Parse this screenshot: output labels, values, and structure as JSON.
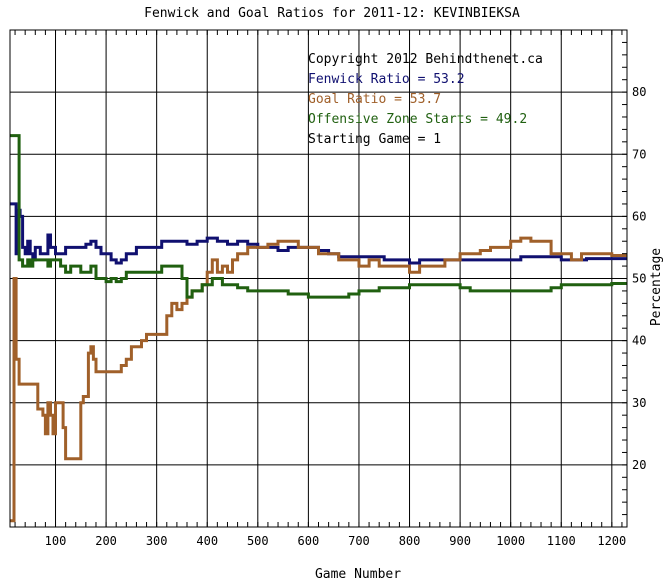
{
  "chart_data": {
    "type": "line",
    "title": "Fenwick and Goal Ratios for 2011-12: KEVINBIEKSA",
    "xlabel": "Game Number",
    "ylabel": "Percentage",
    "xlim": [
      10,
      1230
    ],
    "ylim": [
      10,
      90
    ],
    "x_ticks": [
      100,
      200,
      300,
      400,
      500,
      600,
      700,
      800,
      900,
      1000,
      1100,
      1200
    ],
    "y_ticks": [
      20,
      30,
      40,
      50,
      60,
      70,
      80
    ],
    "grid": true,
    "annotations": [
      "Copyright 2012 Behindthenet.ca",
      "Fenwick Ratio = 53.2",
      "Goal Ratio = 53.7",
      "Offensive Zone Starts = 49.2",
      "Starting Game = 1"
    ],
    "series": [
      {
        "name": "Fenwick Ratio",
        "color": "#101070",
        "points": [
          [
            10,
            62
          ],
          [
            20,
            62
          ],
          [
            22,
            54
          ],
          [
            25,
            61
          ],
          [
            30,
            60
          ],
          [
            35,
            55
          ],
          [
            40,
            54
          ],
          [
            45,
            56
          ],
          [
            50,
            54
          ],
          [
            55,
            53
          ],
          [
            60,
            55
          ],
          [
            70,
            54
          ],
          [
            80,
            54
          ],
          [
            85,
            57
          ],
          [
            90,
            55
          ],
          [
            100,
            54
          ],
          [
            120,
            55
          ],
          [
            140,
            55
          ],
          [
            160,
            55.5
          ],
          [
            170,
            56
          ],
          [
            180,
            55
          ],
          [
            190,
            54
          ],
          [
            200,
            54
          ],
          [
            210,
            53
          ],
          [
            220,
            52.5
          ],
          [
            230,
            53
          ],
          [
            240,
            54
          ],
          [
            260,
            55
          ],
          [
            280,
            55
          ],
          [
            300,
            55
          ],
          [
            310,
            56
          ],
          [
            330,
            56
          ],
          [
            350,
            56
          ],
          [
            360,
            55.5
          ],
          [
            380,
            56
          ],
          [
            400,
            56.5
          ],
          [
            420,
            56
          ],
          [
            440,
            55.5
          ],
          [
            460,
            56
          ],
          [
            480,
            55.5
          ],
          [
            500,
            55
          ],
          [
            520,
            55
          ],
          [
            540,
            54.5
          ],
          [
            560,
            55
          ],
          [
            600,
            55
          ],
          [
            620,
            54.5
          ],
          [
            640,
            54
          ],
          [
            660,
            53.5
          ],
          [
            700,
            53.5
          ],
          [
            750,
            53
          ],
          [
            780,
            53
          ],
          [
            800,
            52.5
          ],
          [
            820,
            53
          ],
          [
            850,
            53
          ],
          [
            880,
            53
          ],
          [
            900,
            53
          ],
          [
            950,
            53
          ],
          [
            1000,
            53
          ],
          [
            1020,
            53.5
          ],
          [
            1050,
            53.5
          ],
          [
            1100,
            53
          ],
          [
            1150,
            53.2
          ],
          [
            1200,
            53.2
          ],
          [
            1230,
            53.2
          ]
        ]
      },
      {
        "name": "Goal Ratio",
        "color": "#a0602a",
        "points": [
          [
            10,
            11
          ],
          [
            16,
            11
          ],
          [
            18,
            50
          ],
          [
            22,
            37
          ],
          [
            28,
            33
          ],
          [
            40,
            33
          ],
          [
            60,
            33
          ],
          [
            65,
            29
          ],
          [
            75,
            28
          ],
          [
            80,
            25
          ],
          [
            85,
            30
          ],
          [
            90,
            28
          ],
          [
            95,
            25
          ],
          [
            100,
            30
          ],
          [
            110,
            30
          ],
          [
            115,
            26
          ],
          [
            120,
            21
          ],
          [
            130,
            21
          ],
          [
            140,
            21
          ],
          [
            150,
            30
          ],
          [
            155,
            31
          ],
          [
            160,
            31
          ],
          [
            165,
            38
          ],
          [
            170,
            39
          ],
          [
            175,
            37
          ],
          [
            180,
            35
          ],
          [
            200,
            35
          ],
          [
            210,
            35
          ],
          [
            220,
            35
          ],
          [
            230,
            36
          ],
          [
            240,
            37
          ],
          [
            250,
            39
          ],
          [
            260,
            39
          ],
          [
            270,
            40
          ],
          [
            280,
            41
          ],
          [
            300,
            41
          ],
          [
            310,
            41
          ],
          [
            320,
            44
          ],
          [
            330,
            46
          ],
          [
            340,
            45
          ],
          [
            350,
            46
          ],
          [
            360,
            47
          ],
          [
            370,
            48
          ],
          [
            380,
            48
          ],
          [
            390,
            49
          ],
          [
            400,
            51
          ],
          [
            410,
            53
          ],
          [
            420,
            51
          ],
          [
            430,
            52
          ],
          [
            440,
            51
          ],
          [
            450,
            53
          ],
          [
            460,
            54
          ],
          [
            480,
            55
          ],
          [
            500,
            55
          ],
          [
            520,
            55.5
          ],
          [
            540,
            56
          ],
          [
            560,
            56
          ],
          [
            580,
            55
          ],
          [
            600,
            55
          ],
          [
            620,
            54
          ],
          [
            640,
            54
          ],
          [
            660,
            53
          ],
          [
            680,
            53
          ],
          [
            700,
            52
          ],
          [
            720,
            53
          ],
          [
            740,
            52
          ],
          [
            760,
            52
          ],
          [
            780,
            52
          ],
          [
            800,
            51
          ],
          [
            820,
            52
          ],
          [
            850,
            52
          ],
          [
            870,
            53
          ],
          [
            880,
            53
          ],
          [
            900,
            54
          ],
          [
            920,
            54
          ],
          [
            940,
            54.5
          ],
          [
            960,
            55
          ],
          [
            980,
            55
          ],
          [
            1000,
            56
          ],
          [
            1020,
            56.5
          ],
          [
            1040,
            56
          ],
          [
            1060,
            56
          ],
          [
            1080,
            54
          ],
          [
            1100,
            54
          ],
          [
            1120,
            53
          ],
          [
            1140,
            54
          ],
          [
            1160,
            54
          ],
          [
            1200,
            53.7
          ],
          [
            1230,
            53.7
          ]
        ]
      },
      {
        "name": "Offensive Zone Starts",
        "color": "#206010",
        "points": [
          [
            10,
            73
          ],
          [
            25,
            73
          ],
          [
            28,
            53
          ],
          [
            35,
            52
          ],
          [
            45,
            53
          ],
          [
            50,
            52
          ],
          [
            55,
            53
          ],
          [
            65,
            53
          ],
          [
            80,
            53
          ],
          [
            85,
            52
          ],
          [
            90,
            53
          ],
          [
            100,
            53
          ],
          [
            110,
            52
          ],
          [
            120,
            51
          ],
          [
            130,
            52
          ],
          [
            140,
            52
          ],
          [
            150,
            51
          ],
          [
            160,
            51
          ],
          [
            170,
            52
          ],
          [
            180,
            50
          ],
          [
            190,
            50
          ],
          [
            200,
            49.5
          ],
          [
            210,
            50
          ],
          [
            220,
            49.5
          ],
          [
            230,
            50
          ],
          [
            240,
            51
          ],
          [
            250,
            51
          ],
          [
            260,
            51
          ],
          [
            270,
            51
          ],
          [
            280,
            51
          ],
          [
            290,
            51
          ],
          [
            300,
            51
          ],
          [
            310,
            52
          ],
          [
            320,
            52
          ],
          [
            340,
            52
          ],
          [
            350,
            50
          ],
          [
            360,
            47
          ],
          [
            370,
            48
          ],
          [
            380,
            48
          ],
          [
            390,
            49
          ],
          [
            400,
            49
          ],
          [
            410,
            50
          ],
          [
            420,
            50
          ],
          [
            430,
            49
          ],
          [
            440,
            49
          ],
          [
            460,
            48.5
          ],
          [
            480,
            48
          ],
          [
            500,
            48
          ],
          [
            520,
            48
          ],
          [
            540,
            48
          ],
          [
            560,
            47.5
          ],
          [
            580,
            47.5
          ],
          [
            600,
            47
          ],
          [
            620,
            47
          ],
          [
            640,
            47
          ],
          [
            660,
            47
          ],
          [
            680,
            47.5
          ],
          [
            700,
            48
          ],
          [
            720,
            48
          ],
          [
            740,
            48.5
          ],
          [
            760,
            48.5
          ],
          [
            780,
            48.5
          ],
          [
            800,
            49
          ],
          [
            820,
            49
          ],
          [
            840,
            49
          ],
          [
            860,
            49
          ],
          [
            880,
            49
          ],
          [
            900,
            48.5
          ],
          [
            920,
            48
          ],
          [
            940,
            48
          ],
          [
            960,
            48
          ],
          [
            980,
            48
          ],
          [
            1000,
            48
          ],
          [
            1020,
            48
          ],
          [
            1040,
            48
          ],
          [
            1060,
            48
          ],
          [
            1080,
            48.5
          ],
          [
            1100,
            49
          ],
          [
            1120,
            49
          ],
          [
            1140,
            49
          ],
          [
            1160,
            49
          ],
          [
            1200,
            49.2
          ],
          [
            1230,
            49.2
          ]
        ]
      }
    ]
  }
}
